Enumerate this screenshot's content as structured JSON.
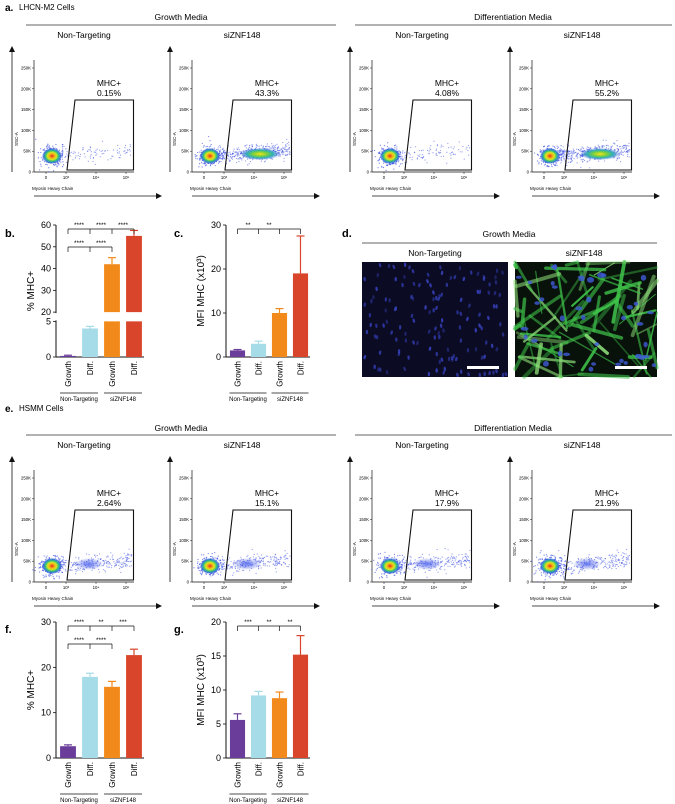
{
  "panel_labels": {
    "a": "a.",
    "b": "b.",
    "c": "c.",
    "d": "d.",
    "e": "e.",
    "f": "f.",
    "g": "g."
  },
  "cell_lines": {
    "top": "LHCN-M2 Cells",
    "bottom": "HSMM Cells"
  },
  "media": {
    "growth": "Growth Media",
    "diff": "Differentiation Media"
  },
  "conditions": {
    "nt": "Non-Targeting",
    "si": "siZNF148"
  },
  "gate_label": "MHC+",
  "flow": {
    "y_axis_label": "SSC-A",
    "x_axis_label": "Myosin Heavy Chain",
    "y_ticks": [
      "250K",
      "200K",
      "150K",
      "100K",
      "50K",
      "0"
    ],
    "x_ticks": [
      "0",
      "10³",
      "10⁴",
      "10⁵"
    ]
  },
  "flow_top": [
    {
      "pct": "0.15%"
    },
    {
      "pct": "43.3%"
    },
    {
      "pct": "4.08%"
    },
    {
      "pct": "55.2%"
    }
  ],
  "flow_bottom": [
    {
      "pct": "2.64%"
    },
    {
      "pct": "15.1%"
    },
    {
      "pct": "17.9%"
    },
    {
      "pct": "21.9%"
    }
  ],
  "micro": {
    "title": "Growth Media",
    "left": "Non-Targeting",
    "right": "siZNF148"
  },
  "bar_colors": [
    "#6a3d9a",
    "#a6dbe8",
    "#f28a1b",
    "#d9452b"
  ],
  "bar_xticks": [
    "Growth",
    "Diff.",
    "Growth",
    "Diff."
  ],
  "bar_groups": [
    "Non-Targeting",
    "siZNF148"
  ],
  "chart_data": [
    {
      "panel": "b",
      "type": "bar",
      "ylabel": "% MHC+",
      "categories": [
        "Growth",
        "Diff.",
        "Growth",
        "Diff."
      ],
      "values": [
        0.15,
        4.0,
        42.0,
        55.0
      ],
      "errors": [
        0.1,
        0.3,
        3.0,
        2.5
      ],
      "yticks": [
        "0",
        "5",
        "20",
        "30",
        "40",
        "50",
        "60"
      ],
      "sig": [
        "****",
        "****",
        "****",
        "****",
        "****"
      ]
    },
    {
      "panel": "c",
      "type": "bar",
      "ylabel": "MFI MHC (x10³)",
      "categories": [
        "Growth",
        "Diff.",
        "Growth",
        "Diff."
      ],
      "values": [
        1.5,
        3.0,
        10.0,
        19.0
      ],
      "errors": [
        0.2,
        0.6,
        1.0,
        8.5
      ],
      "ylim": [
        0,
        30
      ],
      "yticks": [
        "0",
        "10",
        "20",
        "30"
      ],
      "sig": [
        "**",
        "**"
      ]
    },
    {
      "panel": "f",
      "type": "bar",
      "ylabel": "% MHC+",
      "categories": [
        "Growth",
        "Diff.",
        "Growth",
        "Diff."
      ],
      "values": [
        2.6,
        17.9,
        15.7,
        22.7
      ],
      "errors": [
        0.3,
        0.8,
        1.2,
        1.3
      ],
      "ylim": [
        0,
        30
      ],
      "yticks": [
        "0",
        "10",
        "20",
        "30"
      ],
      "sig": [
        "****",
        "**",
        "***",
        "****",
        "****"
      ]
    },
    {
      "panel": "g",
      "type": "bar",
      "ylabel": "MFI MHC (x10³)",
      "categories": [
        "Growth",
        "Diff.",
        "Growth",
        "Diff."
      ],
      "values": [
        5.6,
        9.2,
        8.8,
        15.2
      ],
      "errors": [
        0.9,
        0.6,
        0.9,
        2.8
      ],
      "ylim": [
        0,
        20
      ],
      "yticks": [
        "0",
        "5",
        "10",
        "15",
        "20"
      ],
      "sig": [
        "***",
        "**",
        "**"
      ]
    }
  ]
}
